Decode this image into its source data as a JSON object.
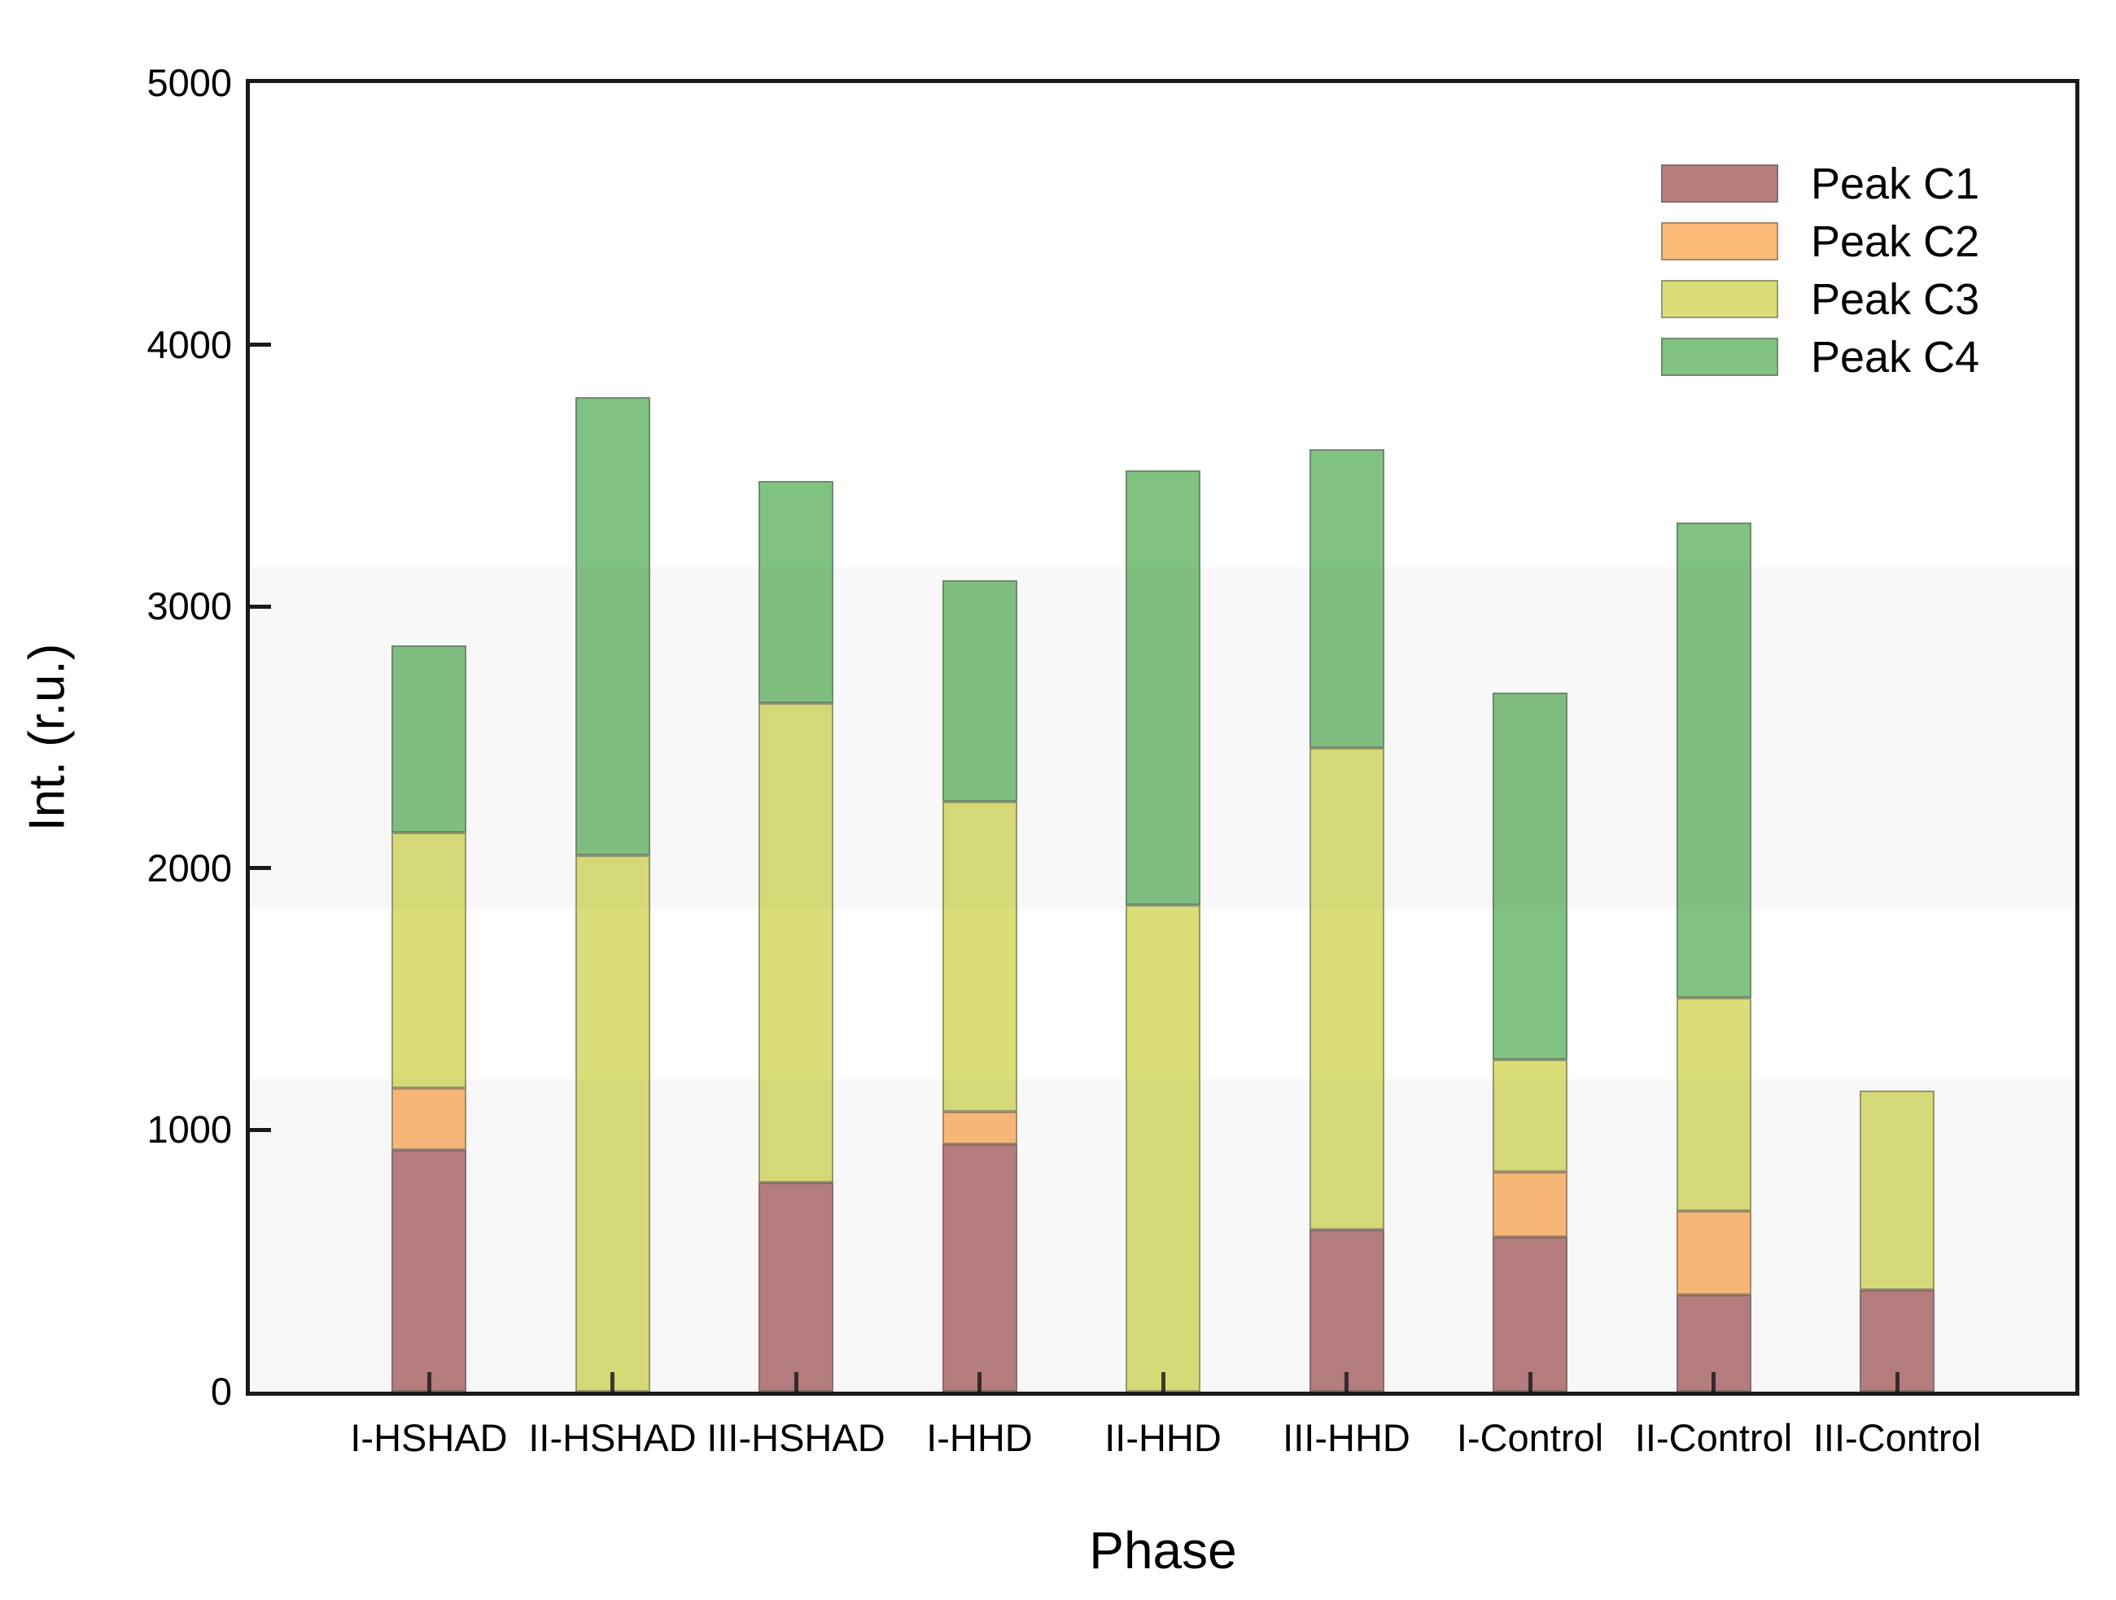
{
  "chart_data": {
    "type": "bar",
    "stacked": true,
    "xlabel": "Phase",
    "ylabel": "Int. (r.u.)",
    "ylim": [
      0,
      5000
    ],
    "yticks": [
      0,
      1000,
      2000,
      3000,
      4000,
      5000
    ],
    "grid": false,
    "legend_position": "upper right",
    "categories": [
      "I-HSHAD",
      "II-HSHAD",
      "III-HSHAD",
      "I-HHD",
      "II-HHD",
      "III-HHD",
      "I-Control",
      "II-Control",
      "III-Control"
    ],
    "series": [
      {
        "name": "Peak C1",
        "color": "#b87d7d",
        "values": [
          925,
          0,
          800,
          945,
          0,
          620,
          590,
          370,
          390
        ]
      },
      {
        "name": "Peak C2",
        "color": "#fcba78",
        "values": [
          235,
          0,
          0,
          125,
          0,
          0,
          250,
          320,
          0
        ]
      },
      {
        "name": "Peak C3",
        "color": "#dbde78",
        "values": [
          975,
          2050,
          1830,
          1185,
          1860,
          1840,
          430,
          815,
          760
        ]
      },
      {
        "name": "Peak C4",
        "color": "#80c280",
        "values": [
          715,
          1750,
          850,
          845,
          1660,
          1140,
          1400,
          1815,
          0
        ]
      }
    ],
    "background_shade_bands": [
      [
        0,
        1195
      ],
      [
        1845,
        3150
      ]
    ],
    "bar_totals": [
      2850,
      3800,
      3480,
      3100,
      3520,
      3600,
      2670,
      3320,
      1150
    ]
  },
  "axis": {
    "frame_color": "#1a1a1a"
  }
}
